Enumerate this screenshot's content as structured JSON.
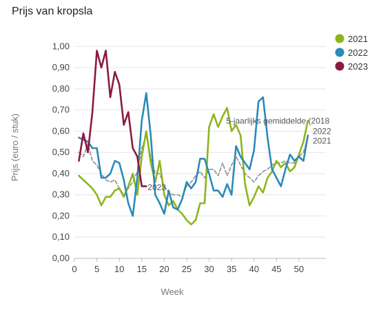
{
  "chart_data": {
    "type": "line",
    "title": "Prijs van kropsla",
    "xlabel": "Week",
    "ylabel": "Prijs (euro / stuk)",
    "xlim": [
      0,
      56
    ],
    "ylim": [
      0,
      1.05
    ],
    "xticks": [
      0,
      5,
      10,
      15,
      20,
      25,
      30,
      35,
      40,
      45,
      50
    ],
    "yticks": [
      0.0,
      0.1,
      0.2,
      0.3,
      0.4,
      0.5,
      0.6,
      0.7,
      0.8,
      0.9,
      1.0
    ],
    "ytick_labels": [
      "0,00",
      "0,10",
      "0,20",
      "0,30",
      "0,40",
      "0,50",
      "0,60",
      "0,70",
      "0,80",
      "0,90",
      "1,00"
    ],
    "grid": "horizontal",
    "legend_position": "right",
    "series": [
      {
        "name": "2021",
        "color": "#8db41c",
        "dash": "solid",
        "end_label": "2021",
        "x": [
          1,
          2,
          3,
          4,
          5,
          6,
          7,
          8,
          9,
          10,
          11,
          12,
          13,
          14,
          15,
          16,
          17,
          18,
          19,
          20,
          21,
          22,
          23,
          24,
          25,
          26,
          27,
          28,
          29,
          30,
          31,
          32,
          33,
          34,
          35,
          36,
          37,
          38,
          39,
          40,
          41,
          42,
          43,
          44,
          45,
          46,
          47,
          48,
          49,
          50,
          51,
          52
        ],
        "y": [
          0.39,
          0.37,
          0.35,
          0.33,
          0.3,
          0.25,
          0.29,
          0.29,
          0.32,
          0.33,
          0.29,
          0.34,
          0.4,
          0.3,
          0.48,
          0.6,
          0.45,
          0.36,
          0.46,
          0.3,
          0.25,
          0.27,
          0.23,
          0.21,
          0.18,
          0.16,
          0.18,
          0.26,
          0.26,
          0.62,
          0.68,
          0.62,
          0.67,
          0.71,
          0.6,
          0.63,
          0.58,
          0.35,
          0.25,
          0.29,
          0.34,
          0.31,
          0.38,
          0.41,
          0.46,
          0.43,
          0.45,
          0.41,
          0.43,
          0.49,
          0.55,
          0.65
        ]
      },
      {
        "name": "2022",
        "color": "#2a8ab8",
        "dash": "solid",
        "end_label": "2022",
        "x": [
          1,
          2,
          3,
          4,
          5,
          6,
          7,
          8,
          9,
          10,
          11,
          12,
          13,
          14,
          15,
          16,
          17,
          18,
          19,
          20,
          21,
          22,
          23,
          24,
          25,
          26,
          27,
          28,
          29,
          30,
          31,
          32,
          33,
          34,
          35,
          36,
          37,
          38,
          39,
          40,
          41,
          42,
          43,
          44,
          45,
          46,
          47,
          48,
          49,
          50,
          51,
          52
        ],
        "y": [
          0.57,
          0.56,
          0.55,
          0.52,
          0.52,
          0.38,
          0.38,
          0.4,
          0.46,
          0.45,
          0.37,
          0.26,
          0.2,
          0.38,
          0.65,
          0.78,
          0.58,
          0.3,
          0.26,
          0.21,
          0.32,
          0.24,
          0.23,
          0.28,
          0.36,
          0.33,
          0.36,
          0.47,
          0.47,
          0.4,
          0.32,
          0.32,
          0.29,
          0.35,
          0.3,
          0.53,
          0.48,
          0.45,
          0.42,
          0.51,
          0.74,
          0.76,
          0.57,
          0.42,
          0.38,
          0.34,
          0.42,
          0.49,
          0.46,
          0.48,
          0.46,
          0.58
        ]
      },
      {
        "name": "2023",
        "color": "#8b1a3c",
        "dash": "solid",
        "end_label": "2023",
        "x": [
          1,
          2,
          3,
          4,
          5,
          6,
          7,
          8,
          9,
          10,
          11,
          12,
          13,
          14,
          15,
          16
        ],
        "y": [
          0.46,
          0.59,
          0.5,
          0.69,
          0.98,
          0.9,
          0.98,
          0.76,
          0.88,
          0.82,
          0.63,
          0.69,
          0.52,
          0.48,
          0.34,
          0.34
        ]
      },
      {
        "name": "5-jaarlijks gemiddelde (2018",
        "color": "#8c8c8c",
        "dash": "dashed",
        "end_label": "5-jaarlijks gemiddelde (2018",
        "x": [
          1,
          2,
          3,
          4,
          5,
          6,
          7,
          8,
          9,
          10,
          11,
          12,
          13,
          14,
          15,
          16,
          17,
          18,
          19,
          20,
          21,
          22,
          23,
          24,
          25,
          26,
          27,
          28,
          29,
          30,
          31,
          32,
          33,
          34,
          35,
          36,
          37,
          38,
          39,
          40,
          41,
          42,
          43,
          44,
          45,
          46,
          47,
          48,
          49,
          50,
          51,
          52
        ],
        "y": [
          0.5,
          0.48,
          0.54,
          0.46,
          0.44,
          0.4,
          0.37,
          0.36,
          0.37,
          0.33,
          0.3,
          0.33,
          0.36,
          0.41,
          0.52,
          0.58,
          0.48,
          0.4,
          0.4,
          0.34,
          0.31,
          0.3,
          0.3,
          0.29,
          0.34,
          0.36,
          0.39,
          0.41,
          0.38,
          0.42,
          0.42,
          0.39,
          0.45,
          0.39,
          0.44,
          0.48,
          0.44,
          0.4,
          0.38,
          0.36,
          0.39,
          0.41,
          0.42,
          0.44,
          0.45,
          0.45,
          0.46,
          0.45,
          0.45,
          0.48,
          0.5,
          0.57
        ]
      }
    ],
    "legend": [
      {
        "label": "2021",
        "color": "#8db41c"
      },
      {
        "label": "2022",
        "color": "#2a8ab8"
      },
      {
        "label": "2023",
        "color": "#8b1a3c"
      }
    ]
  }
}
